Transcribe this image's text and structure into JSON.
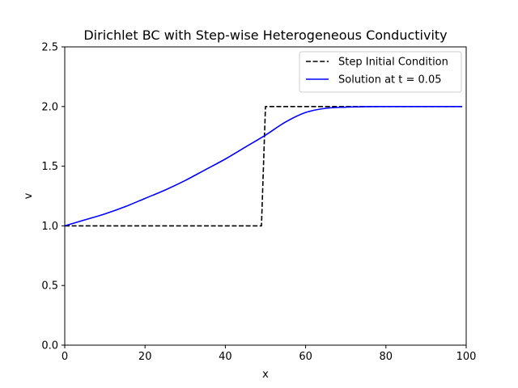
{
  "chart_data": {
    "type": "line",
    "title": "Dirichlet BC with Step-wise Heterogeneous Conductivity",
    "xlabel": "x",
    "ylabel": "v",
    "xlim": [
      0,
      100
    ],
    "ylim": [
      0,
      2.5
    ],
    "xticks": [
      0,
      20,
      40,
      60,
      80,
      100
    ],
    "xtick_labels": [
      "0",
      "20",
      "40",
      "60",
      "80",
      "100"
    ],
    "yticks": [
      0,
      0.5,
      1.0,
      1.5,
      2.0,
      2.5
    ],
    "ytick_labels": [
      "0.0",
      "0.5",
      "1.0",
      "1.5",
      "2.0",
      "2.5"
    ],
    "grid": false,
    "legend_position": "top-right",
    "series": [
      {
        "name": "Step Initial Condition",
        "color": "#000000",
        "style": "dashed",
        "x": [
          0,
          49,
          50,
          99
        ],
        "y": [
          1.0,
          1.0,
          2.0,
          2.0
        ]
      },
      {
        "name": "Solution at t = 0.05",
        "color": "#0000ff",
        "style": "solid",
        "x": [
          0,
          5,
          10,
          15,
          20,
          25,
          30,
          35,
          40,
          45,
          50,
          55,
          60,
          65,
          70,
          75,
          80,
          85,
          90,
          95,
          99
        ],
        "y": [
          1.0,
          1.05,
          1.1,
          1.16,
          1.23,
          1.3,
          1.38,
          1.47,
          1.56,
          1.66,
          1.76,
          1.87,
          1.95,
          1.985,
          1.995,
          1.999,
          2.0,
          2.0,
          2.0,
          2.0,
          2.0
        ]
      }
    ]
  }
}
